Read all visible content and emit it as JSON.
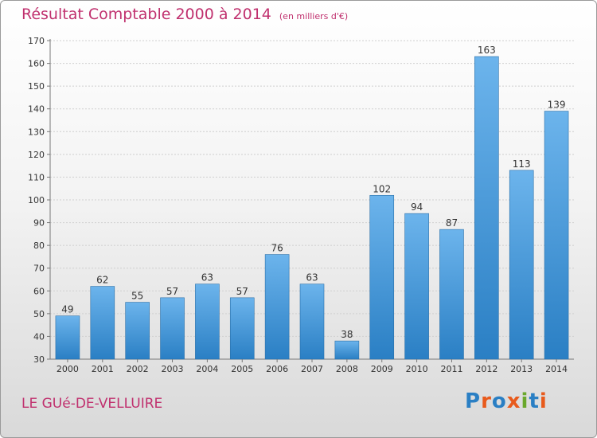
{
  "header": {
    "title": "Résultat Comptable 2000 à 2014",
    "unit": "(en milliers d'€)"
  },
  "footer": {
    "commune": "LE GUé-DE-VELLUIRE",
    "logo_text": "Proxiti"
  },
  "colors": {
    "title": "#c0306e",
    "bar_light": "#6cb4ec",
    "bar_dark": "#2a7fc4",
    "logo_letters": [
      "#2a7fc4",
      "#e85a1c",
      "#2a7fc4",
      "#e85a1c",
      "#6aa82c",
      "#2a7fc4",
      "#e85a1c"
    ]
  },
  "chart_data": {
    "type": "bar",
    "categories": [
      "2000",
      "2001",
      "2002",
      "2003",
      "2004",
      "2005",
      "2006",
      "2007",
      "2008",
      "2009",
      "2010",
      "2011",
      "2012",
      "2013",
      "2014"
    ],
    "values": [
      49,
      62,
      55,
      57,
      63,
      57,
      76,
      63,
      38,
      102,
      94,
      87,
      163,
      113,
      139
    ],
    "ylim": [
      30,
      170
    ],
    "yticks": [
      30,
      40,
      50,
      60,
      70,
      80,
      90,
      100,
      110,
      120,
      130,
      140,
      150,
      160,
      170
    ],
    "grid": true,
    "data_labels": true
  }
}
